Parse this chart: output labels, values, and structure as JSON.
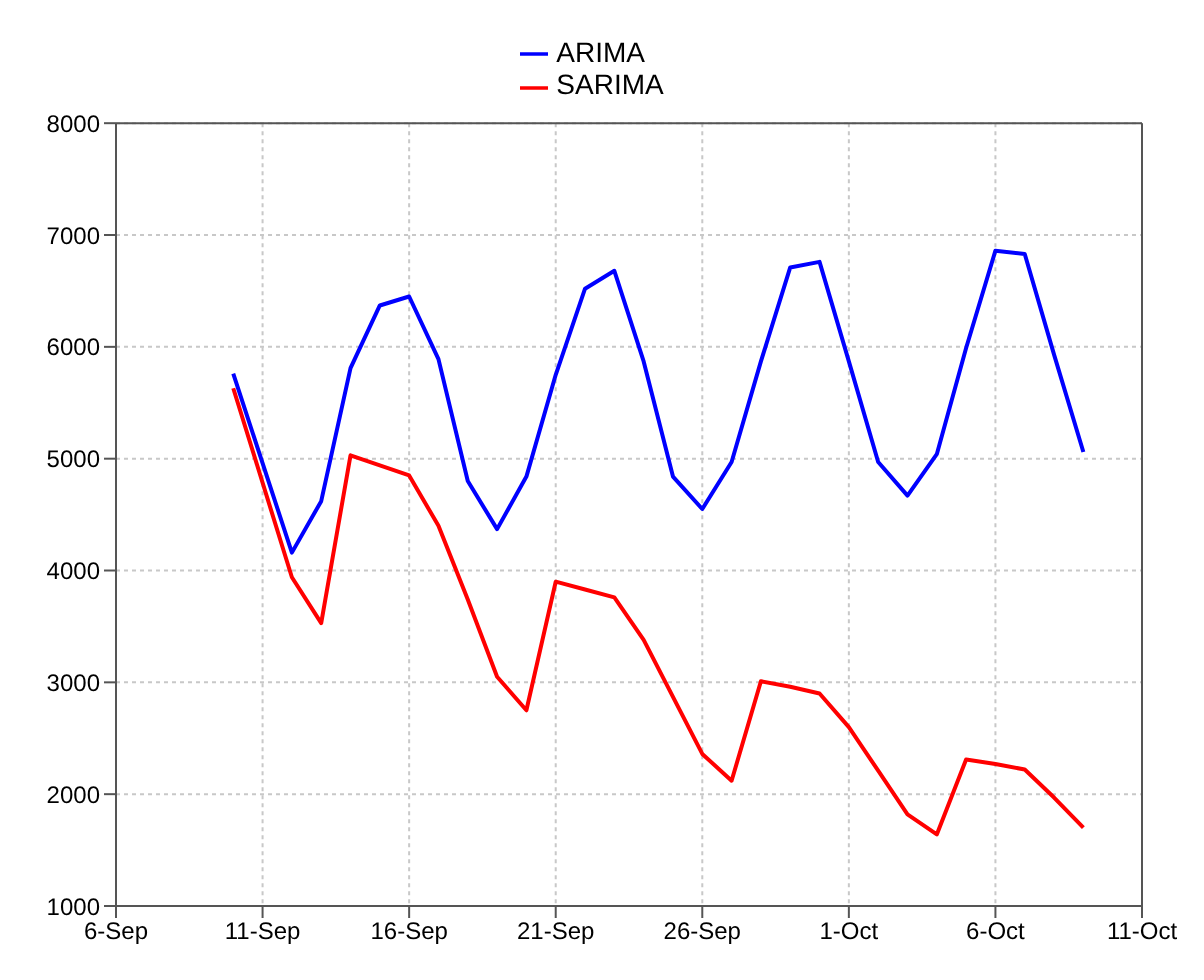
{
  "chart_data": {
    "type": "line",
    "x": [
      "--09-10",
      "--09-12",
      "--09-13",
      "--09-14",
      "--09-15",
      "--09-16",
      "--09-17",
      "--09-18",
      "--09-19",
      "--09-20",
      "--09-21",
      "--09-22",
      "--09-23",
      "--09-24",
      "--09-25",
      "--09-26",
      "--09-27",
      "--09-28",
      "--09-29",
      "--09-30",
      "--10-01",
      "--10-02",
      "--10-03",
      "--10-04",
      "--10-05",
      "--10-06",
      "--10-07",
      "--10-08",
      "--10-09"
    ],
    "series": [
      {
        "name": "ARIMA",
        "color": "#0000ff",
        "values": [
          5760,
          4160,
          4620,
          5810,
          6370,
          6450,
          5890,
          4800,
          4370,
          4840,
          5750,
          6520,
          6680,
          5870,
          4840,
          4550,
          4970,
          5870,
          6710,
          6760,
          5870,
          4970,
          4670,
          5040,
          5990,
          6860,
          6830,
          5930,
          5060
        ]
      },
      {
        "name": "SARIMA",
        "color": "#ff0000",
        "values": [
          5630,
          3940,
          3530,
          5030,
          4940,
          4850,
          4400,
          3740,
          3050,
          2750,
          3900,
          3830,
          3760,
          3380,
          2870,
          2360,
          2120,
          3010,
          2960,
          2900,
          2600,
          2210,
          1820,
          1640,
          2310,
          2270,
          2220,
          1970,
          1700
        ]
      }
    ],
    "xlim": [
      "--09-06",
      "--10-11"
    ],
    "xticks": [
      {
        "value": "--09-06",
        "label": "6-Sep"
      },
      {
        "value": "--09-11",
        "label": "11-Sep"
      },
      {
        "value": "--09-16",
        "label": "16-Sep"
      },
      {
        "value": "--09-21",
        "label": "21-Sep"
      },
      {
        "value": "--09-26",
        "label": "26-Sep"
      },
      {
        "value": "--10-01",
        "label": "1-Oct"
      },
      {
        "value": "--10-06",
        "label": "6-Oct"
      },
      {
        "value": "--10-11",
        "label": "11-Oct"
      }
    ],
    "ylim": [
      1000,
      8000
    ],
    "yticks": [
      1000,
      2000,
      3000,
      4000,
      5000,
      6000,
      7000,
      8000
    ],
    "grid": true,
    "legend": "top",
    "marker": "none",
    "line_style": "solid"
  }
}
